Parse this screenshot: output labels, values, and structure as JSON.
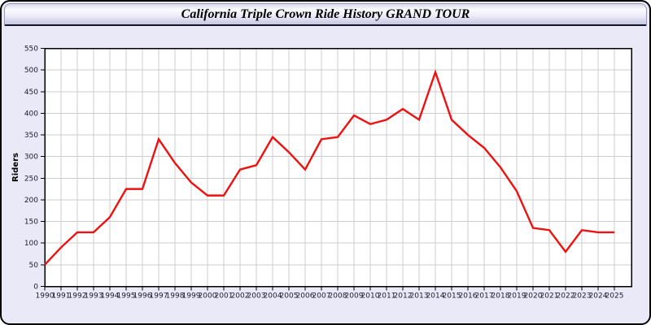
{
  "window": {
    "title": "California Triple Crown Ride History GRAND TOUR"
  },
  "colors": {
    "page_bg": "#ffffff",
    "panel_bg": "#e9e9f7",
    "plot_bg": "#ffffff",
    "grid": "#cccccc",
    "axis": "#000000",
    "tick_label": "#1c1c30",
    "line": "#ee1111",
    "titlebar_top": "#fbfbff",
    "titlebar_bottom": "#c7c7e2"
  },
  "chart_data": {
    "type": "line",
    "title": "California Triple Crown Ride History GRAND TOUR",
    "xlabel": "",
    "ylabel": "Riders",
    "x": [
      1990,
      1991,
      1992,
      1993,
      1994,
      1995,
      1996,
      1997,
      1998,
      1999,
      2000,
      2001,
      2002,
      2003,
      2004,
      2005,
      2006,
      2007,
      2008,
      2009,
      2010,
      2011,
      2012,
      2013,
      2014,
      2015,
      2016,
      2017,
      2018,
      2019,
      2020,
      2021,
      2022,
      2023,
      2024,
      2025
    ],
    "series": [
      {
        "name": "Riders",
        "color": "#ee1111",
        "values": [
          50,
          90,
          125,
          125,
          160,
          225,
          225,
          340,
          285,
          240,
          210,
          210,
          270,
          280,
          345,
          310,
          270,
          340,
          345,
          395,
          375,
          385,
          410,
          385,
          495,
          385,
          350,
          320,
          275,
          220,
          135,
          130,
          80,
          130,
          125,
          125
        ]
      }
    ],
    "ylim": [
      0,
      550
    ],
    "ytick_step": 50,
    "grid": true,
    "legend_position": "none"
  }
}
